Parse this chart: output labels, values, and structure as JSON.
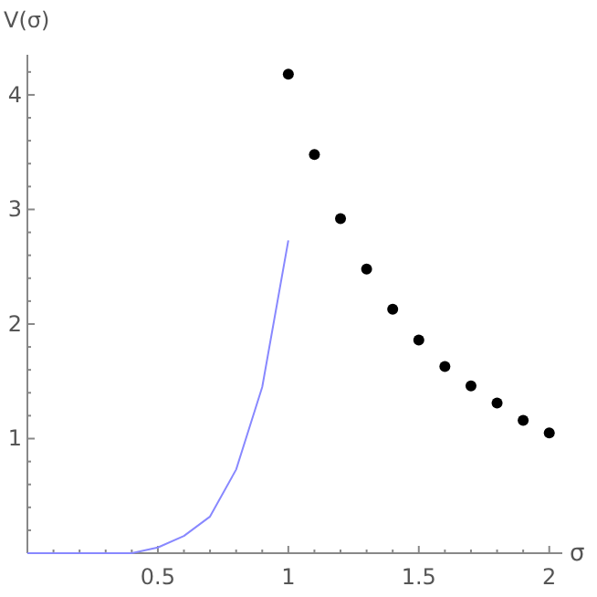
{
  "chart_data": {
    "type": "line",
    "xlabel": "σ",
    "ylabel": "V(σ)",
    "xlim": [
      0,
      2.05
    ],
    "ylim": [
      0,
      4.35
    ],
    "xticks": [
      {
        "value": 0.1,
        "label": null
      },
      {
        "value": 0.2,
        "label": null
      },
      {
        "value": 0.3,
        "label": null
      },
      {
        "value": 0.4,
        "label": null
      },
      0.5,
      {
        "value": 0.6,
        "label": null
      },
      {
        "value": 0.7,
        "label": null
      },
      {
        "value": 0.8,
        "label": null
      },
      {
        "value": 0.9,
        "label": null
      },
      1,
      {
        "value": 1.1,
        "label": null
      },
      {
        "value": 1.2,
        "label": null
      },
      {
        "value": 1.3,
        "label": null
      },
      {
        "value": 1.4,
        "label": null
      },
      1.5,
      {
        "value": 1.6,
        "label": null
      },
      {
        "value": 1.7,
        "label": null
      },
      {
        "value": 1.8,
        "label": null
      },
      {
        "value": 1.9,
        "label": null
      },
      2
    ],
    "yticks": [
      {
        "value": 0.2,
        "label": null
      },
      {
        "value": 0.4,
        "label": null
      },
      {
        "value": 0.6,
        "label": null
      },
      {
        "value": 0.8,
        "label": null
      },
      1,
      {
        "value": 1.2,
        "label": null
      },
      {
        "value": 1.4,
        "label": null
      },
      {
        "value": 1.6,
        "label": null
      },
      {
        "value": 1.8,
        "label": null
      },
      2,
      {
        "value": 2.2,
        "label": null
      },
      {
        "value": 2.4,
        "label": null
      },
      {
        "value": 2.6,
        "label": null
      },
      {
        "value": 2.8,
        "label": null
      },
      3,
      {
        "value": 3.2,
        "label": null
      },
      {
        "value": 3.4,
        "label": null
      },
      {
        "value": 3.6,
        "label": null
      },
      {
        "value": 3.8,
        "label": null
      },
      4,
      {
        "value": 4.2,
        "label": null
      }
    ],
    "series": [
      {
        "color": "#8888ff",
        "x": [
          0,
          0.1,
          0.2,
          0.3,
          0.4,
          0.5,
          0.6,
          0.7,
          0.8,
          0.9,
          1.0
        ],
        "values": [
          0,
          0,
          0,
          0,
          0,
          0.05,
          0.15,
          0.32,
          0.73,
          1.45,
          2.73
        ]
      },
      {
        "type": "scatter",
        "color": "#000000",
        "marker": "circle",
        "x": [
          1.0,
          1.1,
          1.2,
          1.3,
          1.4,
          1.5,
          1.6,
          1.7,
          1.8,
          1.9,
          2.0
        ],
        "values": [
          4.18,
          3.48,
          2.92,
          2.48,
          2.13,
          1.86,
          1.63,
          1.46,
          1.31,
          1.16,
          1.05
        ]
      }
    ]
  }
}
